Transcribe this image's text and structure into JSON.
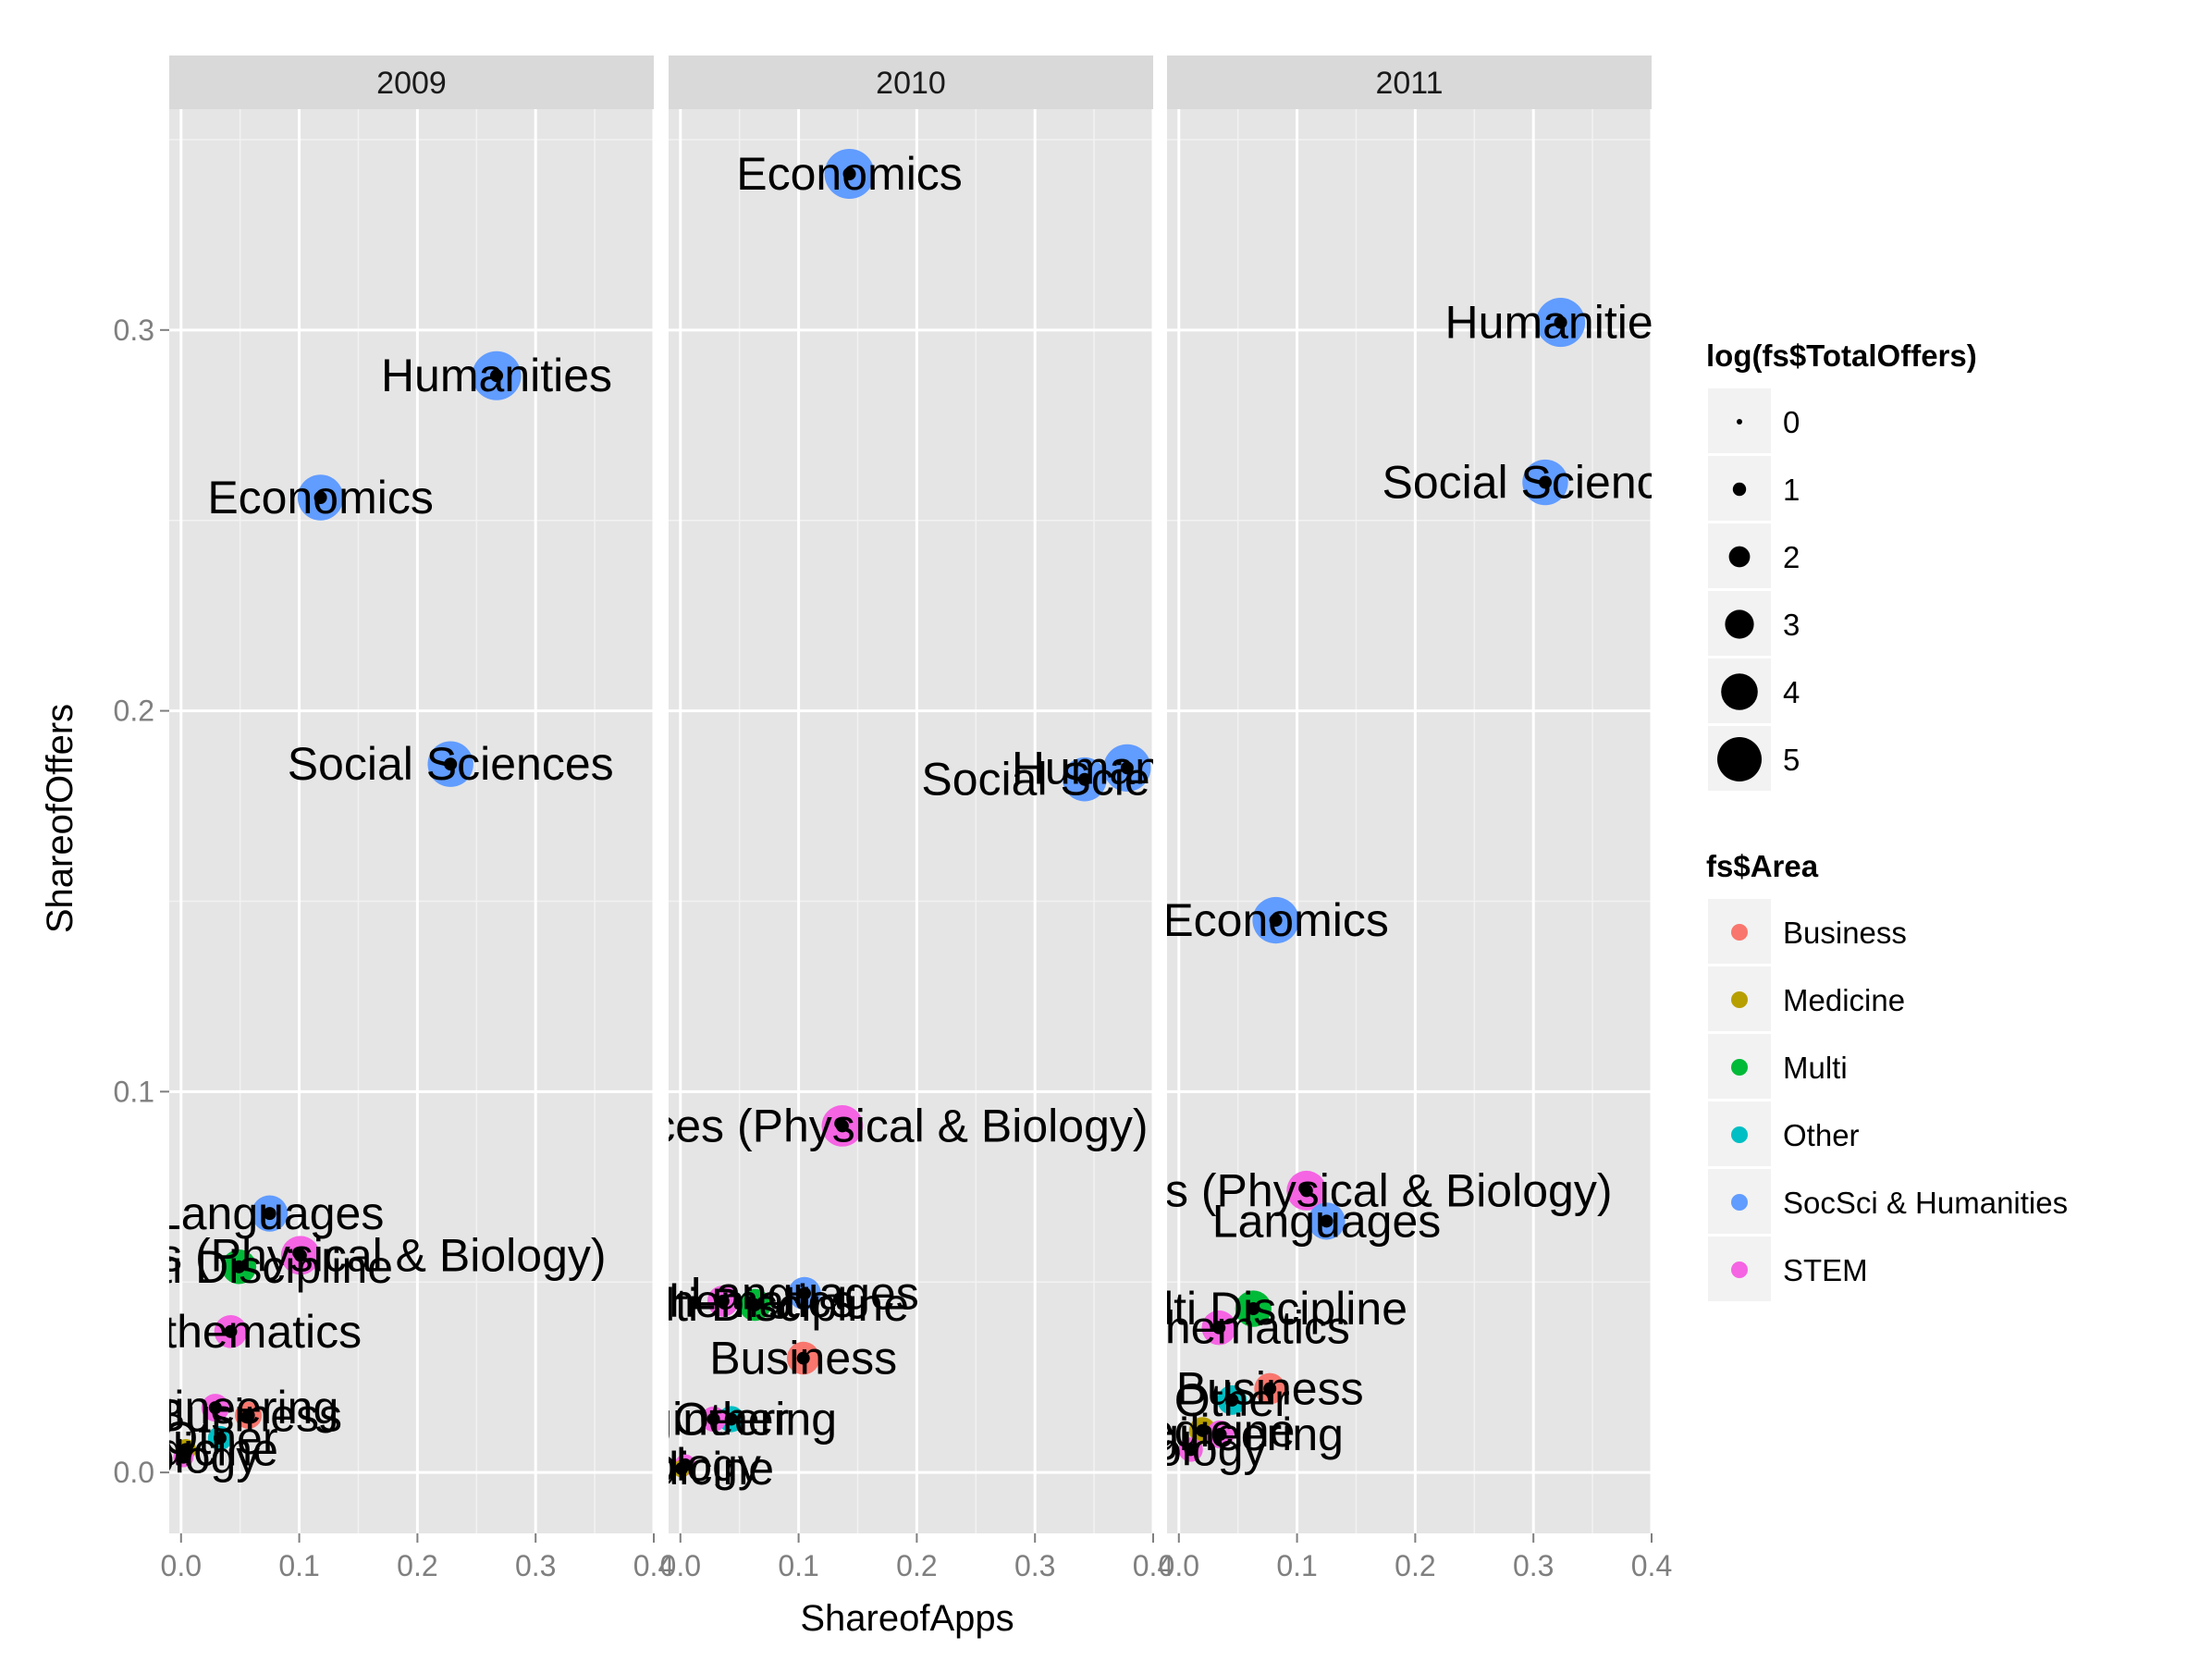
{
  "chart_data": {
    "type": "scatter",
    "facets": [
      "2009",
      "2010",
      "2011"
    ],
    "xlabel": "ShareofApps",
    "ylabel": "ShareofOffers",
    "xlim": [
      -0.01,
      0.4
    ],
    "ylim": [
      -0.016,
      0.358
    ],
    "x_ticks": [
      {
        "value": 0.0,
        "label": "0.0"
      },
      {
        "value": 0.1,
        "label": "0.1"
      },
      {
        "value": 0.2,
        "label": "0.2"
      },
      {
        "value": 0.3,
        "label": "0.3"
      },
      {
        "value": 0.4,
        "label": "0.4"
      }
    ],
    "y_ticks": [
      {
        "value": 0.0,
        "label": "0.0"
      },
      {
        "value": 0.1,
        "label": "0.1"
      },
      {
        "value": 0.2,
        "label": "0.2"
      },
      {
        "value": 0.3,
        "label": "0.3"
      }
    ],
    "grid": true,
    "legend_position": "right",
    "size_legend": {
      "title": "log(fs$TotalOffers)",
      "entries": [
        {
          "label": "0",
          "value": 0
        },
        {
          "label": "1",
          "value": 1
        },
        {
          "label": "2",
          "value": 2
        },
        {
          "label": "3",
          "value": 3
        },
        {
          "label": "4",
          "value": 4
        },
        {
          "label": "5",
          "value": 5
        }
      ]
    },
    "color_legend": {
      "title": "fs$Area",
      "entries": [
        {
          "label": "Business",
          "color": "#F8766D"
        },
        {
          "label": "Medicine",
          "color": "#B79F00"
        },
        {
          "label": "Multi",
          "color": "#00BA38"
        },
        {
          "label": "Other",
          "color": "#00BFC4"
        },
        {
          "label": "SocSci & Humanities",
          "color": "#619CFF"
        },
        {
          "label": "STEM",
          "color": "#F564E3"
        }
      ]
    },
    "points": [
      {
        "facet": "2009",
        "label": "Humanities",
        "area": "SocSci & Humanities",
        "x": 0.267,
        "y": 0.288,
        "size": 4.9
      },
      {
        "facet": "2009",
        "label": "Economics",
        "area": "SocSci & Humanities",
        "x": 0.118,
        "y": 0.256,
        "size": 4.5
      },
      {
        "facet": "2009",
        "label": "Social Sciences",
        "area": "SocSci & Humanities",
        "x": 0.228,
        "y": 0.186,
        "size": 4.5
      },
      {
        "facet": "2009",
        "label": "Languages",
        "area": "SocSci & Humanities",
        "x": 0.075,
        "y": 0.068,
        "size": 3.4
      },
      {
        "facet": "2009",
        "label": "Sciences (Physical & Biology)",
        "area": "STEM",
        "x": 0.101,
        "y": 0.057,
        "size": 3.7
      },
      {
        "facet": "2009",
        "label": "Multi Discipline",
        "area": "Multi",
        "x": 0.049,
        "y": 0.054,
        "size": 3.2
      },
      {
        "facet": "2009",
        "label": "Mathematics",
        "area": "STEM",
        "x": 0.042,
        "y": 0.037,
        "size": 3.0
      },
      {
        "facet": "2009",
        "label": "Engineering",
        "area": "STEM",
        "x": 0.029,
        "y": 0.017,
        "size": 2.4
      },
      {
        "facet": "2009",
        "label": "Business",
        "area": "Business",
        "x": 0.057,
        "y": 0.015,
        "size": 2.3
      },
      {
        "facet": "2009",
        "label": "Other",
        "area": "Other",
        "x": 0.033,
        "y": 0.009,
        "size": 2.0
      },
      {
        "facet": "2009",
        "label": "Medicine",
        "area": "Medicine",
        "x": 0.004,
        "y": 0.006,
        "size": 1.6
      },
      {
        "facet": "2009",
        "label": "Biology",
        "area": "STEM",
        "x": 0.002,
        "y": 0.004,
        "size": 1.5
      },
      {
        "facet": "2010",
        "label": "Economics",
        "area": "SocSci & Humanities",
        "x": 0.143,
        "y": 0.341,
        "size": 5.0
      },
      {
        "facet": "2010",
        "label": "Humanities",
        "area": "SocSci & Humanities",
        "x": 0.378,
        "y": 0.185,
        "size": 4.7
      },
      {
        "facet": "2010",
        "label": "Social Sciences",
        "area": "SocSci & Humanities",
        "x": 0.342,
        "y": 0.182,
        "size": 4.3
      },
      {
        "facet": "2010",
        "label": "Sciences (Physical & Biology)",
        "area": "STEM",
        "x": 0.137,
        "y": 0.091,
        "size": 4.0
      },
      {
        "facet": "2010",
        "label": "Languages",
        "area": "SocSci & Humanities",
        "x": 0.105,
        "y": 0.047,
        "size": 3.0
      },
      {
        "facet": "2010",
        "label": "Multi Discipline",
        "area": "Multi",
        "x": 0.063,
        "y": 0.044,
        "size": 2.9
      },
      {
        "facet": "2010",
        "label": "Mathematics",
        "area": "STEM",
        "x": 0.036,
        "y": 0.045,
        "size": 2.8
      },
      {
        "facet": "2010",
        "label": "Business",
        "area": "Business",
        "x": 0.104,
        "y": 0.03,
        "size": 3.0
      },
      {
        "facet": "2010",
        "label": "Other",
        "area": "Other",
        "x": 0.043,
        "y": 0.014,
        "size": 2.2
      },
      {
        "facet": "2010",
        "label": "Engineering",
        "area": "STEM",
        "x": 0.028,
        "y": 0.014,
        "size": 2.1
      },
      {
        "facet": "2010",
        "label": "Biology",
        "area": "STEM",
        "x": 0.004,
        "y": 0.002,
        "size": 1.6
      },
      {
        "facet": "2010",
        "label": "Medicine",
        "area": "Medicine",
        "x": 0.001,
        "y": 0.001,
        "size": 1.2
      },
      {
        "facet": "2011",
        "label": "Humanities",
        "area": "SocSci & Humanities",
        "x": 0.323,
        "y": 0.302,
        "size": 4.9
      },
      {
        "facet": "2011",
        "label": "Social Sciences",
        "area": "SocSci & Humanities",
        "x": 0.31,
        "y": 0.26,
        "size": 4.5
      },
      {
        "facet": "2011",
        "label": "Economics",
        "area": "SocSci & Humanities",
        "x": 0.082,
        "y": 0.145,
        "size": 4.6
      },
      {
        "facet": "2011",
        "label": "Sciences (Physical & Biology)",
        "area": "STEM",
        "x": 0.108,
        "y": 0.074,
        "size": 3.8
      },
      {
        "facet": "2011",
        "label": "Languages",
        "area": "SocSci & Humanities",
        "x": 0.125,
        "y": 0.066,
        "size": 3.5
      },
      {
        "facet": "2011",
        "label": "Multi Discipline",
        "area": "Multi",
        "x": 0.063,
        "y": 0.043,
        "size": 3.4
      },
      {
        "facet": "2011",
        "label": "Mathematics",
        "area": "STEM",
        "x": 0.034,
        "y": 0.038,
        "size": 3.2
      },
      {
        "facet": "2011",
        "label": "Business",
        "area": "Business",
        "x": 0.077,
        "y": 0.022,
        "size": 2.8
      },
      {
        "facet": "2011",
        "label": "Other",
        "area": "Other",
        "x": 0.045,
        "y": 0.019,
        "size": 2.6
      },
      {
        "facet": "2011",
        "label": "Medicine",
        "area": "Medicine",
        "x": 0.02,
        "y": 0.011,
        "size": 2.3
      },
      {
        "facet": "2011",
        "label": "Engineering",
        "area": "STEM",
        "x": 0.035,
        "y": 0.01,
        "size": 2.4
      },
      {
        "facet": "2011",
        "label": "Biology",
        "area": "STEM",
        "x": 0.01,
        "y": 0.006,
        "size": 2.0
      }
    ]
  }
}
